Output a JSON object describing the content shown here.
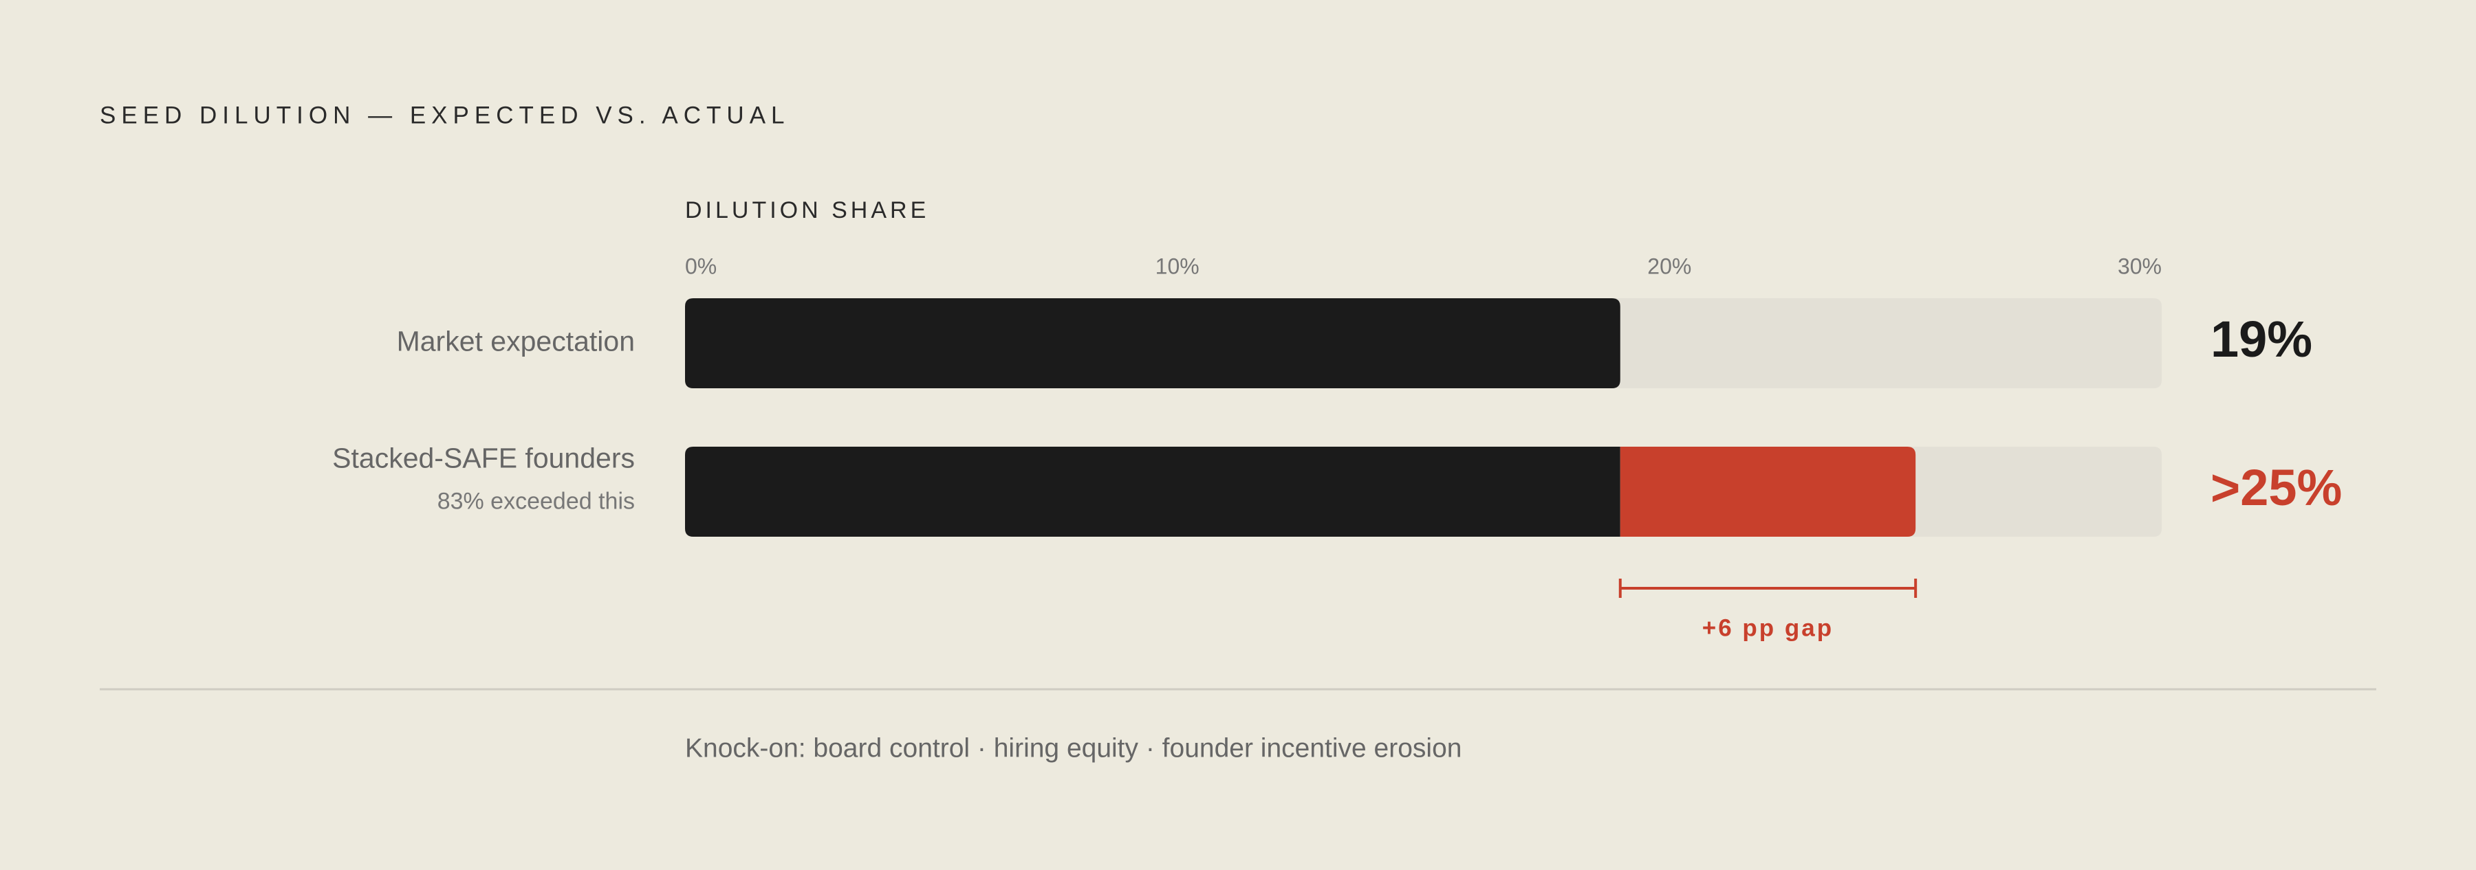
{
  "chart_data": {
    "type": "stacked-bar",
    "title": "SEED DILUTION — EXPECTED VS. ACTUAL",
    "x_label": "DILUTION SHARE",
    "categories": [
      "Market expectation",
      "Stacked-SAFE founders"
    ],
    "category_notes": [
      null,
      "83% exceeded this"
    ],
    "series": [
      {
        "color": "#1b1b1b",
        "values": [
          19,
          19
        ]
      },
      {
        "color": "#c8402c",
        "values": [
          null,
          6
        ]
      }
    ],
    "end_labels": [
      "19%",
      ">25%"
    ],
    "xlim": [
      0,
      30
    ],
    "xticks": [
      {
        "value": 0,
        "label": "0%"
      },
      {
        "value": 10,
        "label": "10%"
      },
      {
        "value": 20,
        "label": "20%"
      },
      {
        "value": 30,
        "label": "30%"
      }
    ],
    "track_color": "#e3e0d6",
    "gap_bracket": {
      "from": 19,
      "to": 25,
      "label": "+6 pp gap",
      "color": "#c8402c"
    },
    "note": "Knock-on: board control · hiring equity · founder incentive erosion"
  }
}
